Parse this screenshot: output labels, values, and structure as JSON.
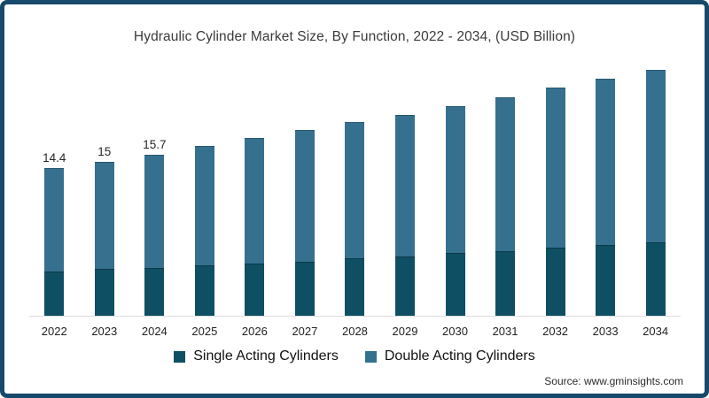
{
  "source": "Source: www.gminsights.com",
  "colors": {
    "frame_border": "#17496b",
    "single_acting": "#0f4f63",
    "double_acting": "#35708f",
    "axis_line": "#dcdcdc"
  },
  "chart_data": {
    "type": "bar",
    "stacked": true,
    "title": "Hydraulic Cylinder Market Size, By Function, 2022 - 2034, (USD Billion)",
    "categories": [
      "2022",
      "2023",
      "2024",
      "2025",
      "2026",
      "2027",
      "2028",
      "2029",
      "2030",
      "2031",
      "2032",
      "2033",
      "2034"
    ],
    "series": [
      {
        "name": "Single Acting Cylinders",
        "values": [
          4.3,
          4.6,
          4.7,
          4.9,
          5.1,
          5.3,
          5.6,
          5.8,
          6.1,
          6.3,
          6.6,
          6.9,
          7.2
        ]
      },
      {
        "name": "Double Acting Cylinders",
        "values": [
          10.1,
          10.4,
          11.0,
          11.7,
          12.2,
          12.8,
          13.3,
          13.8,
          14.3,
          15.0,
          15.6,
          16.2,
          16.8
        ]
      }
    ],
    "totals": [
      14.4,
      15,
      15.7,
      16.6,
      17.3,
      18.1,
      18.9,
      19.6,
      20.4,
      21.3,
      22.2,
      23.1,
      24.0
    ],
    "bar_labels": [
      "14.4",
      "15",
      "15.7",
      null,
      null,
      null,
      null,
      null,
      null,
      null,
      null,
      null,
      null
    ],
    "xlabel": "",
    "ylabel": "",
    "ylim": [
      0,
      25
    ],
    "grid": false,
    "y_axis_visible": false,
    "legend_position": "bottom"
  }
}
